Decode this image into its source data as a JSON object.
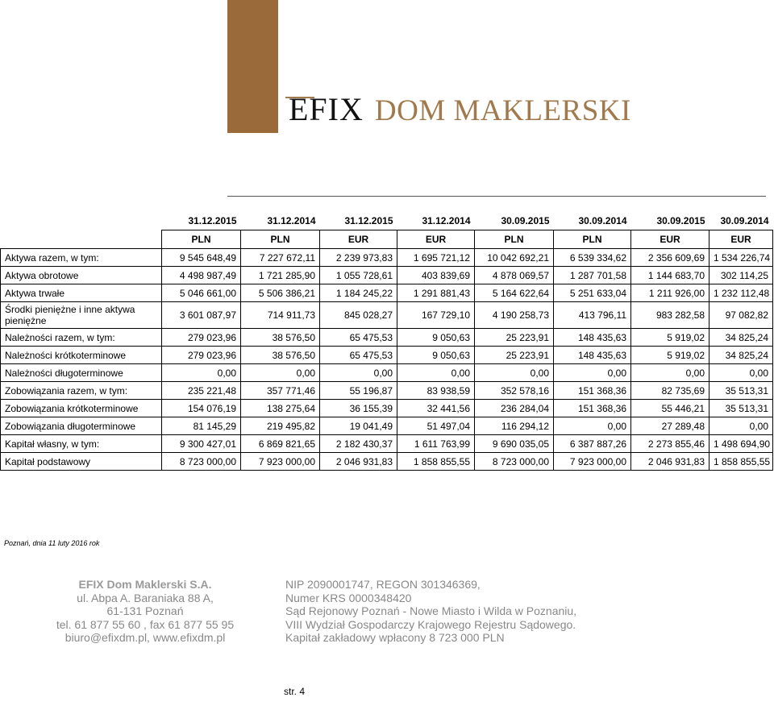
{
  "logo": {
    "brand": "EFIX",
    "subtitle": "DOM MAKLERSKI"
  },
  "table": {
    "dates": [
      "31.12.2015",
      "31.12.2014",
      "31.12.2015",
      "31.12.2014",
      "30.09.2015",
      "30.09.2014",
      "30.09.2015",
      "30.09.2014"
    ],
    "currencies": [
      "PLN",
      "PLN",
      "EUR",
      "EUR",
      "PLN",
      "PLN",
      "EUR",
      "EUR"
    ],
    "rows": [
      {
        "label": "Aktywa razem, w tym:",
        "values": [
          "9 545 648,49",
          "7 227 672,11",
          "2 239 973,83",
          "1 695 721,12",
          "10 042 692,21",
          "6 539 334,62",
          "2 356 609,69",
          "1 534 226,74"
        ]
      },
      {
        "label": "Aktywa obrotowe",
        "values": [
          "4 498 987,49",
          "1 721 285,90",
          "1 055 728,61",
          "403 839,69",
          "4 878 069,57",
          "1 287 701,58",
          "1 144 683,70",
          "302 114,25"
        ]
      },
      {
        "label": "Aktywa trwałe",
        "values": [
          "5 046 661,00",
          "5 506 386,21",
          "1 184 245,22",
          "1 291 881,43",
          "5 164 622,64",
          "5 251 633,04",
          "1 211 926,00",
          "1 232 112,48"
        ]
      },
      {
        "label": "Środki pieniężne i inne aktywa pieniężne",
        "values": [
          "3 601 087,97",
          "714 911,73",
          "845 028,27",
          "167 729,10",
          "4 190 258,73",
          "413 796,11",
          "983 282,58",
          "97 082,82"
        ]
      },
      {
        "label": "Należności razem, w tym:",
        "values": [
          "279 023,96",
          "38 576,50",
          "65 475,53",
          "9 050,63",
          "25 223,91",
          "148 435,63",
          "5 919,02",
          "34 825,24"
        ]
      },
      {
        "label": "Należności krótkoterminowe",
        "values": [
          "279 023,96",
          "38 576,50",
          "65 475,53",
          "9 050,63",
          "25 223,91",
          "148 435,63",
          "5 919,02",
          "34 825,24"
        ]
      },
      {
        "label": "Należności długoterminowe",
        "values": [
          "0,00",
          "0,00",
          "0,00",
          "0,00",
          "0,00",
          "0,00",
          "0,00",
          "0,00"
        ]
      },
      {
        "label": "Zobowiązania razem, w tym:",
        "values": [
          "235 221,48",
          "357 771,46",
          "55 196,87",
          "83 938,59",
          "352 578,16",
          "151 368,36",
          "82 735,69",
          "35 513,31"
        ]
      },
      {
        "label": "Zobowiązania krótkoterminowe",
        "values": [
          "154 076,19",
          "138 275,64",
          "36 155,39",
          "32 441,56",
          "236 284,04",
          "151 368,36",
          "55 446,21",
          "35 513,31"
        ]
      },
      {
        "label": "Zobowiązania długoterminowe",
        "values": [
          "81 145,29",
          "219 495,82",
          "19 041,49",
          "51 497,04",
          "116 294,12",
          "0,00",
          "27 289,48",
          "0,00"
        ]
      },
      {
        "label": "Kapitał własny, w tym:",
        "values": [
          "9 300 427,01",
          "6 869 821,65",
          "2 182 430,37",
          "1 611 763,99",
          "9 690 035,05",
          "6 387 887,26",
          "2 273 855,46",
          "1 498 694,90"
        ]
      },
      {
        "label": "Kapitał podstawowy",
        "values": [
          "8 723 000,00",
          "7 923 000,00",
          "2 046 931,83",
          "1 858 855,55",
          "8 723 000,00",
          "7 923 000,00",
          "2 046 931,83",
          "1 858 855,55"
        ]
      }
    ]
  },
  "place_date": "Poznań, dnia 11 luty 2016 rok",
  "footer": {
    "left": [
      "EFIX Dom Maklerski S.A.",
      "ul. Abpa A. Baraniaka 88 A,",
      "61-131 Poznań",
      "tel. 61 877 55 60 , fax 61 877 55 95",
      "biuro@efixdm.pl, www.efixdm.pl"
    ],
    "right": [
      "NIP 2090001747, REGON 301346369,",
      "Numer KRS 0000348420",
      "Sąd Rejonowy Poznań - Nowe Miasto i Wilda w Poznaniu,",
      "VIII Wydział Gospodarczy Krajowego Rejestru Sądowego.",
      "Kapitał zakładowy wpłacony 8 723 000 PLN"
    ]
  },
  "page_number": "str. 4"
}
